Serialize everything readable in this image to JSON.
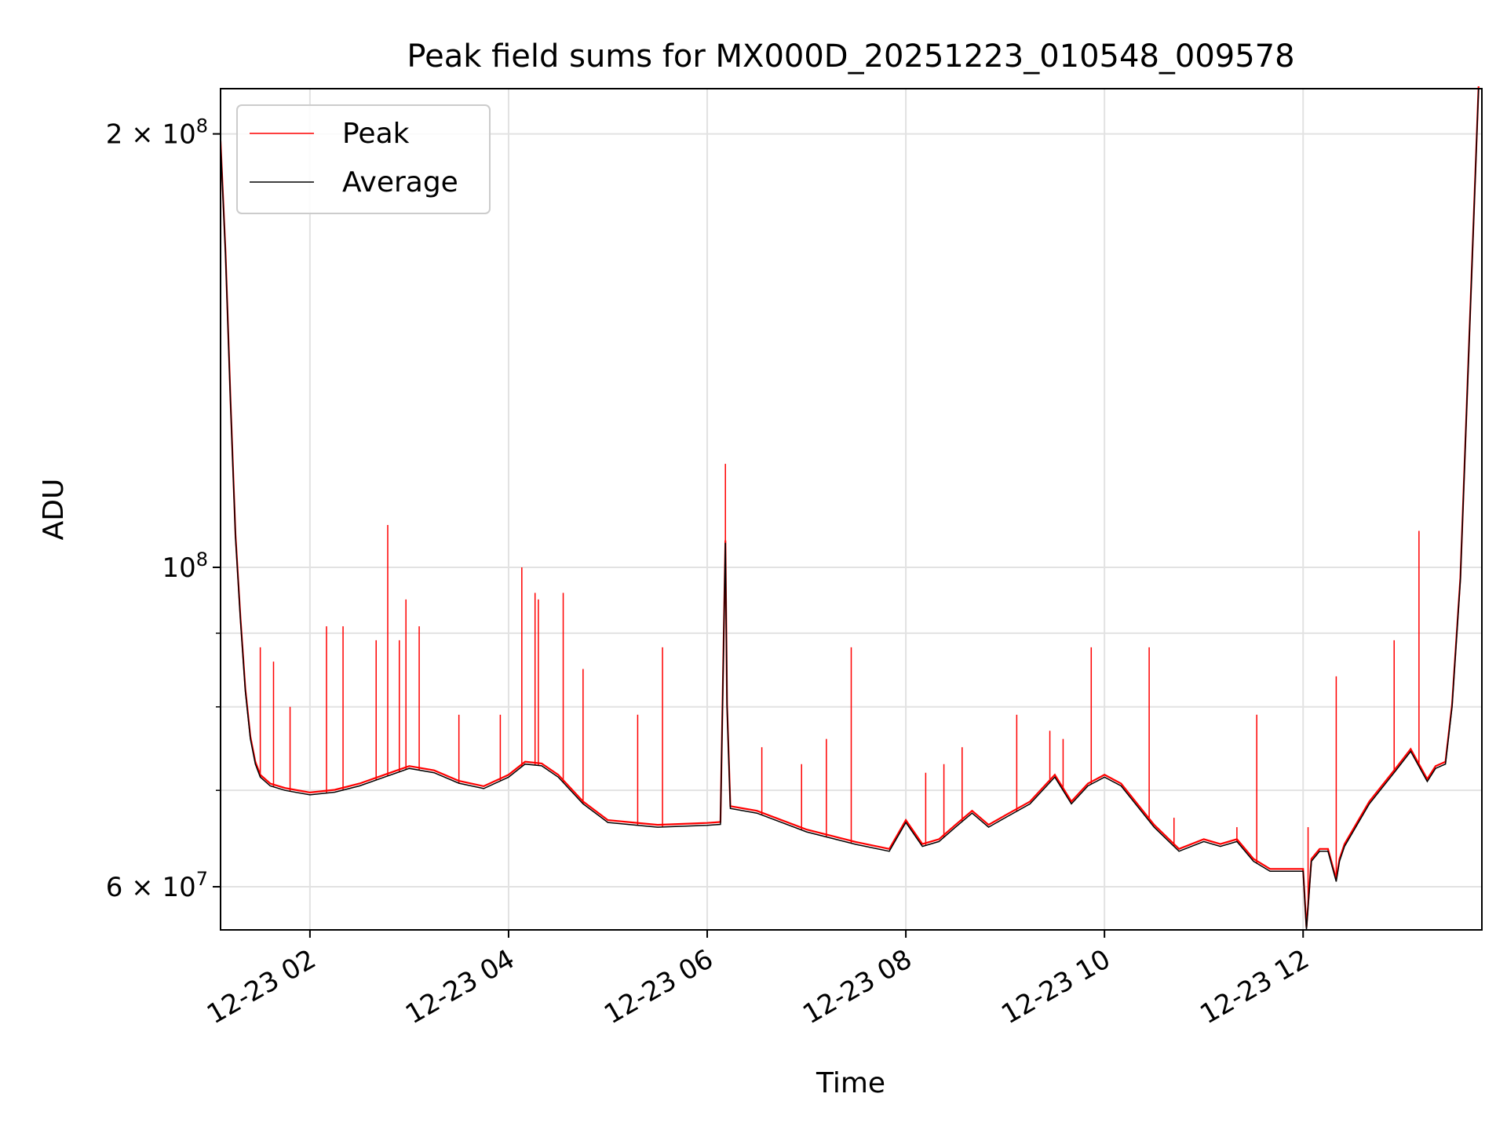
{
  "chart_data": {
    "type": "line",
    "title": "Peak field sums for MX000D_20251223_010548_009578",
    "xlabel": "Time",
    "ylabel": "ADU",
    "yscale": "log",
    "xlim": [
      "2025-12-23T01:06",
      "2025-12-23T13:48"
    ],
    "ylim": [
      56000000,
      215000000
    ],
    "grid": true,
    "legend_position": "upper left",
    "x_ticks": [
      {
        "value": "2025-12-23T02:00",
        "label": "12-23 02"
      },
      {
        "value": "2025-12-23T04:00",
        "label": "12-23 04"
      },
      {
        "value": "2025-12-23T06:00",
        "label": "12-23 06"
      },
      {
        "value": "2025-12-23T08:00",
        "label": "12-23 08"
      },
      {
        "value": "2025-12-23T10:00",
        "label": "12-23 10"
      },
      {
        "value": "2025-12-23T12:00",
        "label": "12-23 12"
      }
    ],
    "y_ticks": [
      {
        "value": 60000000,
        "base": "6 × 10",
        "exp": "7"
      },
      {
        "value": 100000000,
        "base": "10",
        "exp": "8"
      },
      {
        "value": 200000000,
        "base": "2 × 10",
        "exp": "8"
      }
    ],
    "y_minor_ticks": [
      70000000,
      80000000,
      90000000
    ],
    "series": [
      {
        "name": "Average",
        "color": "#000000",
        "x": [
          "2025-12-23T01:06",
          "2025-12-23T01:09",
          "2025-12-23T01:12",
          "2025-12-23T01:15",
          "2025-12-23T01:18",
          "2025-12-23T01:21",
          "2025-12-23T01:24",
          "2025-12-23T01:27",
          "2025-12-23T01:30",
          "2025-12-23T01:36",
          "2025-12-23T01:45",
          "2025-12-23T02:00",
          "2025-12-23T02:15",
          "2025-12-23T02:30",
          "2025-12-23T02:45",
          "2025-12-23T03:00",
          "2025-12-23T03:15",
          "2025-12-23T03:30",
          "2025-12-23T03:45",
          "2025-12-23T04:00",
          "2025-12-23T04:10",
          "2025-12-23T04:20",
          "2025-12-23T04:30",
          "2025-12-23T04:45",
          "2025-12-23T05:00",
          "2025-12-23T05:30",
          "2025-12-23T06:00",
          "2025-12-23T06:08",
          "2025-12-23T06:11",
          "2025-12-23T06:12",
          "2025-12-23T06:14",
          "2025-12-23T06:30",
          "2025-12-23T07:00",
          "2025-12-23T07:30",
          "2025-12-23T07:50",
          "2025-12-23T08:00",
          "2025-12-23T08:10",
          "2025-12-23T08:20",
          "2025-12-23T08:30",
          "2025-12-23T08:40",
          "2025-12-23T08:50",
          "2025-12-23T09:00",
          "2025-12-23T09:15",
          "2025-12-23T09:30",
          "2025-12-23T09:40",
          "2025-12-23T09:50",
          "2025-12-23T10:00",
          "2025-12-23T10:10",
          "2025-12-23T10:30",
          "2025-12-23T10:45",
          "2025-12-23T11:00",
          "2025-12-23T11:10",
          "2025-12-23T11:20",
          "2025-12-23T11:30",
          "2025-12-23T11:40",
          "2025-12-23T12:00",
          "2025-12-23T12:02",
          "2025-12-23T12:05",
          "2025-12-23T12:10",
          "2025-12-23T12:15",
          "2025-12-23T12:20",
          "2025-12-23T12:22",
          "2025-12-23T12:25",
          "2025-12-23T12:40",
          "2025-12-23T12:55",
          "2025-12-23T13:05",
          "2025-12-23T13:15",
          "2025-12-23T13:20",
          "2025-12-23T13:26",
          "2025-12-23T13:30",
          "2025-12-23T13:35",
          "2025-12-23T13:40",
          "2025-12-23T13:46"
        ],
        "y": [
          197000000,
          165000000,
          130000000,
          105000000,
          92000000,
          82000000,
          76000000,
          73000000,
          71500000,
          70500000,
          70000000,
          69500000,
          69800000,
          70500000,
          71500000,
          72500000,
          72000000,
          70800000,
          70200000,
          71500000,
          73000000,
          72800000,
          71500000,
          68500000,
          66500000,
          66000000,
          66200000,
          66300000,
          104000000,
          80000000,
          68000000,
          67500000,
          65500000,
          64200000,
          63500000,
          66500000,
          64000000,
          64500000,
          66000000,
          67500000,
          66000000,
          67000000,
          68500000,
          71500000,
          68500000,
          70500000,
          71500000,
          70500000,
          66000000,
          63500000,
          64500000,
          64000000,
          64500000,
          62500000,
          61500000,
          61500000,
          56000000,
          62500000,
          63500000,
          63500000,
          60500000,
          62500000,
          64000000,
          68500000,
          72000000,
          74500000,
          71000000,
          72500000,
          73000000,
          80000000,
          98000000,
          140000000,
          215000000
        ]
      },
      {
        "name": "Peak",
        "color": "#ff0000",
        "x": [
          "2025-12-23T01:30",
          "2025-12-23T01:38",
          "2025-12-23T01:48",
          "2025-12-23T02:10",
          "2025-12-23T02:20",
          "2025-12-23T02:40",
          "2025-12-23T02:47",
          "2025-12-23T02:54",
          "2025-12-23T02:58",
          "2025-12-23T03:06",
          "2025-12-23T03:30",
          "2025-12-23T03:55",
          "2025-12-23T04:08",
          "2025-12-23T04:16",
          "2025-12-23T04:18",
          "2025-12-23T04:33",
          "2025-12-23T04:45",
          "2025-12-23T05:18",
          "2025-12-23T05:33",
          "2025-12-23T06:11",
          "2025-12-23T06:33",
          "2025-12-23T06:57",
          "2025-12-23T07:12",
          "2025-12-23T07:27",
          "2025-12-23T08:12",
          "2025-12-23T08:23",
          "2025-12-23T08:34",
          "2025-12-23T09:07",
          "2025-12-23T09:27",
          "2025-12-23T09:35",
          "2025-12-23T09:52",
          "2025-12-23T10:27",
          "2025-12-23T10:42",
          "2025-12-23T11:20",
          "2025-12-23T11:32",
          "2025-12-23T12:03",
          "2025-12-23T12:20",
          "2025-12-23T12:55",
          "2025-12-23T13:10"
        ],
        "y": [
          88000000,
          86000000,
          80000000,
          91000000,
          91000000,
          89000000,
          107000000,
          89000000,
          95000000,
          91000000,
          79000000,
          79000000,
          100000000,
          96000000,
          95000000,
          96000000,
          85000000,
          79000000,
          88000000,
          118000000,
          75000000,
          73000000,
          76000000,
          88000000,
          72000000,
          73000000,
          75000000,
          79000000,
          77000000,
          76000000,
          88000000,
          88000000,
          67000000,
          66000000,
          79000000,
          66000000,
          84000000,
          89000000,
          106000000
        ]
      }
    ]
  }
}
